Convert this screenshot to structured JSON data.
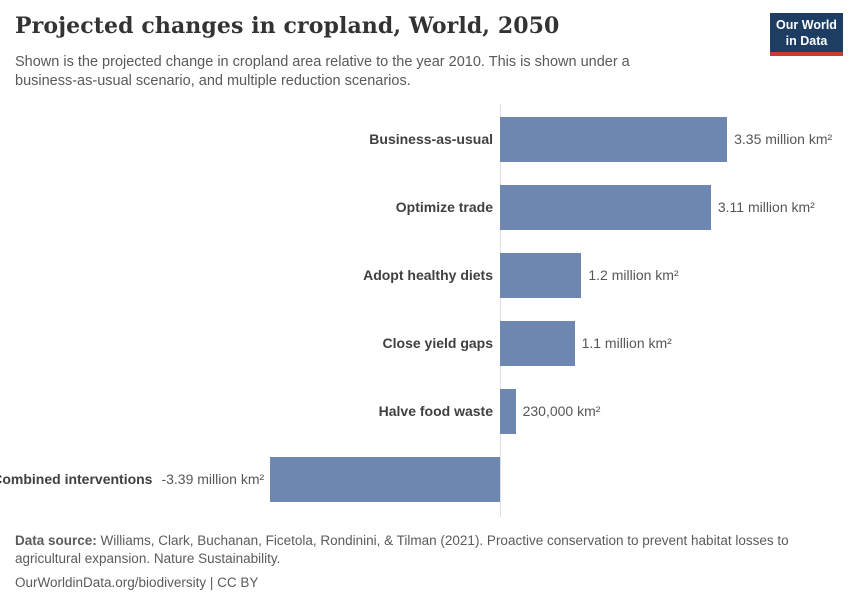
{
  "header": {
    "title": "Projected changes in cropland, World, 2050",
    "subtitle": "Shown is the projected change in cropland area relative to the year 2010. This is shown under a business-as-usual scenario, and multiple reduction scenarios.",
    "logo": {
      "line1": "Our World",
      "line2": "in Data",
      "navy_color": "#1d3d63",
      "red_color": "#cc3b33"
    }
  },
  "chart_data": {
    "type": "bar",
    "orientation": "horizontal",
    "title": "Projected changes in cropland, World, 2050",
    "unit": "million km²",
    "baseline_note": "change relative to year 2010",
    "categories": [
      "Business-as-usual",
      "Optimize trade",
      "Adopt healthy diets",
      "Close yield gaps",
      "Halve food waste",
      "Combined interventions"
    ],
    "values_million_km2": [
      3.35,
      3.11,
      1.2,
      1.1,
      0.23,
      -3.39
    ],
    "value_labels": [
      "3.35 million km²",
      "3.11 million km²",
      "1.2 million km²",
      "1.1 million km²",
      "230,000 km²",
      "-3.39 million km²"
    ],
    "xlim": [
      -3.39,
      3.35
    ],
    "grid": false,
    "legend": "none",
    "bar_color": "#6d87b0",
    "axis_line_color": "#dedede"
  },
  "footer": {
    "source_label": "Data source:",
    "source_text": " Williams, Clark, Buchanan, Ficetola, Rondinini, & Tilman (2021). Proactive conservation to prevent habitat losses to agricultural expansion. Nature Sustainability.",
    "link_text": "OurWorldinData.org/biodiversity | CC BY"
  }
}
